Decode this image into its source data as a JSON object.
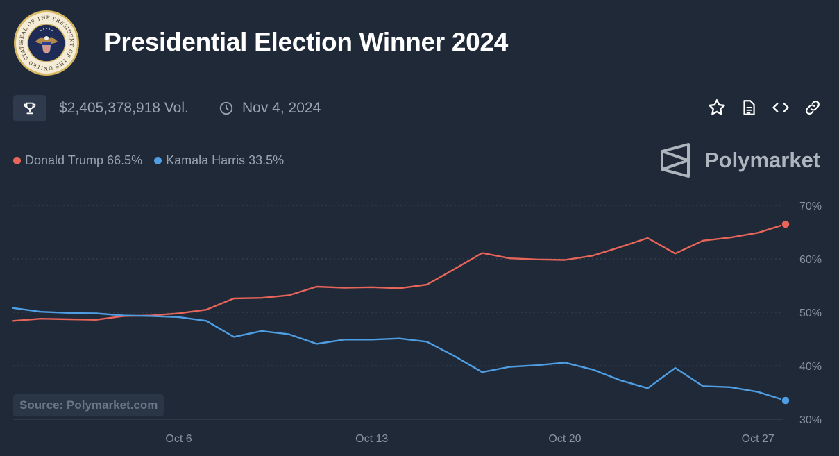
{
  "header": {
    "title": "Presidential Election Winner 2024",
    "seal_text": "SEAL OF THE PRESIDENT OF THE UNITED STATES"
  },
  "stats": {
    "volume": "$2,405,378,918 Vol.",
    "end_date": "Nov 4, 2024"
  },
  "icons": {
    "trophy": "trophy-icon",
    "clock": "clock-icon",
    "star": "star-icon",
    "document": "document-icon",
    "embed": "code-icon",
    "link": "link-icon"
  },
  "legend": [
    {
      "label": "Donald Trump 66.5%",
      "color": "#e8655a"
    },
    {
      "label": "Kamala Harris 33.5%",
      "color": "#4f9ee3"
    }
  ],
  "brand": {
    "name": "Polymarket"
  },
  "source": "Source: Polymarket.com",
  "chart_data": {
    "type": "line",
    "title": "",
    "xlabel": "",
    "ylabel": "",
    "x_start": "Sep 30",
    "x_end": "Oct 28",
    "x_ticks": [
      {
        "label": "Oct 6",
        "day": 6
      },
      {
        "label": "Oct 13",
        "day": 13
      },
      {
        "label": "Oct 20",
        "day": 20
      },
      {
        "label": "Oct 27",
        "day": 27
      }
    ],
    "y_ticks": [
      "70%",
      "60%",
      "50%",
      "40%",
      "30%"
    ],
    "ylim": [
      30,
      70
    ],
    "grid": true,
    "y_axis_position": "right",
    "x": [
      "Sep 30",
      "Oct 1",
      "Oct 2",
      "Oct 3",
      "Oct 4",
      "Oct 5",
      "Oct 6",
      "Oct 7",
      "Oct 8",
      "Oct 9",
      "Oct 10",
      "Oct 11",
      "Oct 12",
      "Oct 13",
      "Oct 14",
      "Oct 15",
      "Oct 16",
      "Oct 17",
      "Oct 18",
      "Oct 19",
      "Oct 20",
      "Oct 21",
      "Oct 22",
      "Oct 23",
      "Oct 24",
      "Oct 25",
      "Oct 26",
      "Oct 27",
      "Oct 28"
    ],
    "series": [
      {
        "name": "Donald Trump",
        "color": "#e8655a",
        "values": [
          48.4,
          48.8,
          48.7,
          48.6,
          49.3,
          49.4,
          49.8,
          50.5,
          52.6,
          52.7,
          53.2,
          54.8,
          54.6,
          54.7,
          54.5,
          55.2,
          58.1,
          61.1,
          60.1,
          59.9,
          59.8,
          60.6,
          62.2,
          63.9,
          61.0,
          63.4,
          64.0,
          64.9,
          66.5
        ]
      },
      {
        "name": "Kamala Harris",
        "color": "#4f9ee3",
        "values": [
          50.8,
          50.1,
          49.9,
          49.8,
          49.4,
          49.3,
          49.1,
          48.4,
          45.4,
          46.5,
          45.9,
          44.1,
          44.9,
          44.9,
          45.1,
          44.5,
          41.8,
          38.8,
          39.8,
          40.1,
          40.6,
          39.3,
          37.3,
          35.8,
          39.6,
          36.2,
          36.0,
          35.1,
          33.5
        ]
      }
    ]
  }
}
